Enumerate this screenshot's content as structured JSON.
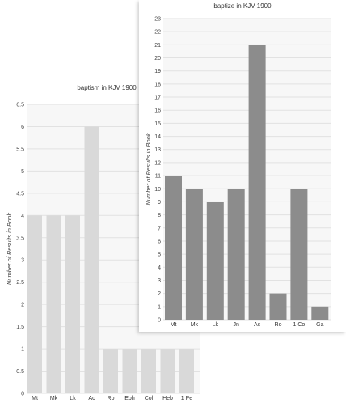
{
  "chart_data": [
    {
      "type": "bar",
      "title": "baptism in KJV 1900",
      "xlabel": "",
      "ylabel": "Number of Results in Book",
      "categories": [
        "Mt",
        "Mk",
        "Lk",
        "Ac",
        "Ro",
        "Eph",
        "Col",
        "Heb",
        "1 Pe"
      ],
      "values": [
        4,
        4,
        4,
        6,
        1,
        1,
        1,
        1,
        1
      ],
      "ylim": [
        0,
        6.5
      ],
      "yticks": [
        "0",
        "0.5",
        "1",
        "1.5",
        "2",
        "2.5",
        "3",
        "3.5",
        "4",
        "4.5",
        "5",
        "5.5",
        "6",
        "6.5"
      ],
      "grid": true,
      "bar_color": "#d9d9d9"
    },
    {
      "type": "bar",
      "title": "baptize in KJV 1900",
      "xlabel": "",
      "ylabel": "Number of Results in Book",
      "categories": [
        "Mt",
        "Mk",
        "Lk",
        "Jn",
        "Ac",
        "Ro",
        "1 Co",
        "Ga"
      ],
      "values": [
        11,
        10,
        9,
        10,
        21,
        2,
        10,
        1
      ],
      "ylim": [
        0,
        23
      ],
      "yticks": [
        "0",
        "1",
        "2",
        "3",
        "4",
        "5",
        "6",
        "7",
        "8",
        "9",
        "10",
        "11",
        "12",
        "13",
        "14",
        "15",
        "16",
        "17",
        "18",
        "19",
        "20",
        "21",
        "22",
        "23"
      ],
      "grid": true,
      "bar_color": "#8c8c8c"
    }
  ]
}
